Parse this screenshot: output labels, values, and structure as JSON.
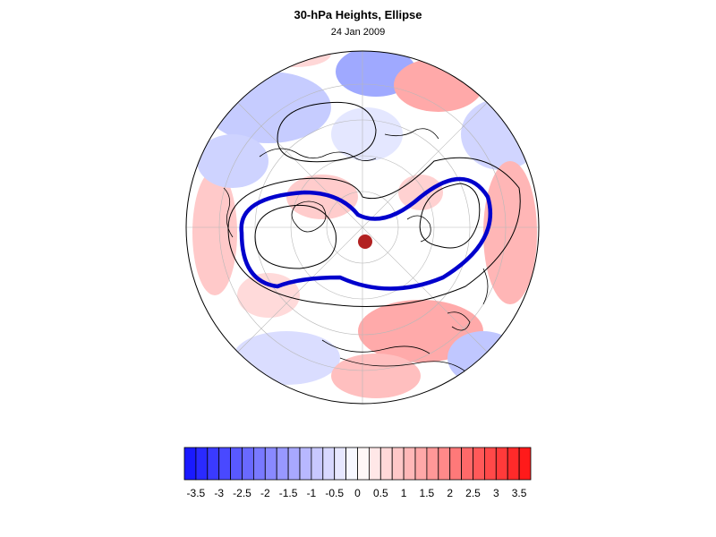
{
  "title": "30-hPa Heights, Ellipse",
  "date_label": "24 Jan 2009",
  "map": {
    "projection": "polar-orthographic",
    "center_marker_color": "#b22222",
    "ellipse_contour_color": "#0000cc",
    "height_contour_color": "#000000"
  },
  "colorbar": {
    "tick_labels": [
      "-3.5",
      "-3",
      "-2.5",
      "-2",
      "-1.5",
      "-1",
      "-0.5",
      "0",
      "0.5",
      "1",
      "1.5",
      "2",
      "2.5",
      "3",
      "3.5"
    ],
    "range": [
      -3.75,
      3.75
    ],
    "step": 0.25,
    "negative_color": "#1a1aff",
    "neutral_color": "#ffffff",
    "positive_color": "#ff1a1a"
  }
}
